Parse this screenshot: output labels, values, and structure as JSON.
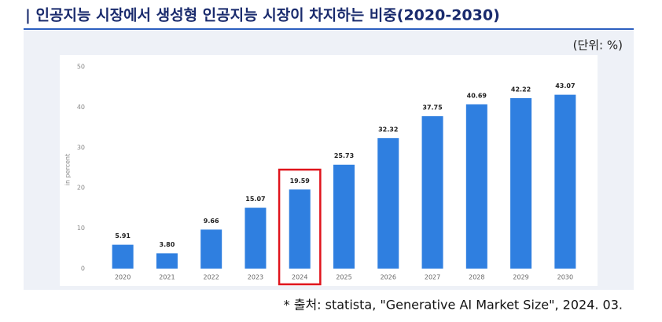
{
  "header": {
    "title": "| 인공지능 시장에서 생성형 인공지능 시장이 차지하는 비중(2020-2030)",
    "unit": "(단위: %)"
  },
  "chart_data": {
    "type": "bar",
    "ylabel": "in percent",
    "categories": [
      "2020",
      "2021",
      "2022",
      "2023",
      "2024",
      "2025",
      "2026",
      "2027",
      "2028",
      "2029",
      "2030"
    ],
    "values": [
      5.91,
      3.8,
      9.66,
      15.07,
      19.59,
      25.73,
      32.32,
      37.75,
      40.69,
      42.22,
      43.07
    ],
    "value_labels": [
      "5.91",
      "3.80",
      "9.66",
      "15.07",
      "19.59",
      "25.73",
      "32.32",
      "37.75",
      "40.69",
      "42.22",
      "43.07"
    ],
    "color": "#2f7fe0",
    "highlight": "2024",
    "highlight_color": "#e0141c",
    "ylim": [
      0,
      50
    ],
    "yticks": [
      0,
      10,
      20,
      30,
      40,
      50
    ],
    "grid": false
  },
  "footer": {
    "source": "* 출처: statista, \"Generative AI Market Size\", 2024. 03."
  }
}
